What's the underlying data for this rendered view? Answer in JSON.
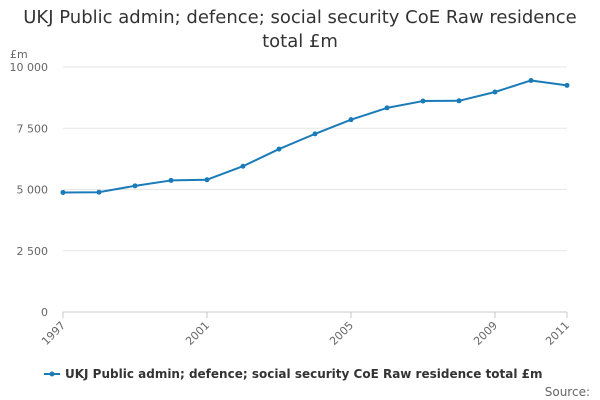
{
  "chart_data": {
    "type": "line",
    "title": "UKJ Public admin; defence; social security CoE Raw residence total £m",
    "ylabel": "£m",
    "xlabel": "",
    "x": [
      1997,
      1998,
      1999,
      2000,
      2001,
      2002,
      2003,
      2004,
      2005,
      2006,
      2007,
      2008,
      2009,
      2010,
      2011
    ],
    "xlim": [
      1997,
      2011
    ],
    "x_ticks": [
      "1997",
      "2001",
      "2005",
      "2009",
      "2011"
    ],
    "ylim": [
      0,
      10000
    ],
    "y_ticks": [
      "0",
      "2 500",
      "5 000",
      "7 500",
      "10 000"
    ],
    "grid": true,
    "series": [
      {
        "name": "UKJ Public admin; defence; social security CoE Raw residence total £m",
        "color": "#1a7bb9",
        "values": [
          4880,
          4890,
          5150,
          5370,
          5400,
          5950,
          6650,
          7270,
          7850,
          8330,
          8610,
          8620,
          8980,
          9450,
          9250
        ]
      }
    ],
    "legend": "bottom-left",
    "source_label": "Source:"
  }
}
